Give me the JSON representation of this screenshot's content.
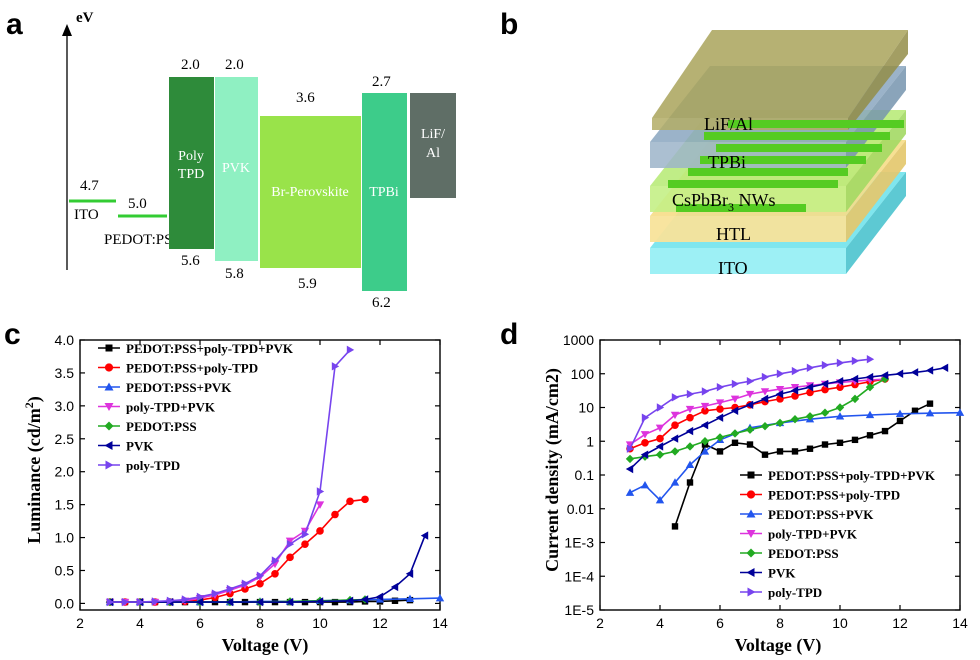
{
  "panels": {
    "a": {
      "letter": "a",
      "axis_label": "eV",
      "levels": [
        {
          "name": "ITO",
          "value": "4.7",
          "color": "#33cc33"
        },
        {
          "name": "PEDOT:PSS",
          "value": "5.0",
          "color": "#33cc33"
        }
      ],
      "bars": [
        {
          "name": "Poly TPD",
          "line1": "Poly",
          "line2": "TPD",
          "top": "2.0",
          "bottom": "5.6",
          "color": "#2e8b3a"
        },
        {
          "name": "PVK",
          "line1": "PVK",
          "line2": "",
          "top": "2.0",
          "bottom": "5.8",
          "color": "#8ff0c2"
        },
        {
          "name": "Br-Perovskite",
          "line1": "Br-Perovskite",
          "line2": "",
          "top": "3.6",
          "bottom": "5.9",
          "color": "#99e34a"
        },
        {
          "name": "TPBi",
          "line1": "TPBi",
          "line2": "",
          "top": "2.7",
          "bottom": "6.2",
          "color": "#3dcc8a"
        },
        {
          "name": "LiF/Al",
          "line1": "LiF/",
          "line2": "Al",
          "top": "",
          "bottom": "",
          "color": "#5f6e66"
        }
      ]
    },
    "b": {
      "letter": "b",
      "layers": [
        {
          "name": "ITO",
          "color": "#7fe6ee"
        },
        {
          "name": "HTL",
          "color": "#f6dd8a"
        },
        {
          "name": "CsPbBr3 NWs",
          "label_main": "CsPbBr",
          "label_sub": "3",
          "label_rest": " NWs",
          "color": "#b9eb7a"
        },
        {
          "name": "TPBi",
          "color": "#8aa6bf"
        },
        {
          "name": "LiF/Al",
          "color": "#a9a35a"
        }
      ],
      "nanowire_color": "#55cc22"
    },
    "c": {
      "letter": "c"
    },
    "d": {
      "letter": "d"
    }
  },
  "series_style": [
    {
      "name": "PEDOT:PSS+poly-TPD+PVK",
      "color": "#000000",
      "marker": "square"
    },
    {
      "name": "PEDOT:PSS+poly-TPD",
      "color": "#ff0000",
      "marker": "circle"
    },
    {
      "name": "PEDOT:PSS+PVK",
      "color": "#2255ee",
      "marker": "triangle-up"
    },
    {
      "name": "poly-TPD+PVK",
      "color": "#dd33dd",
      "marker": "triangle-down"
    },
    {
      "name": "PEDOT:PSS",
      "color": "#22aa22",
      "marker": "diamond"
    },
    {
      "name": "PVK",
      "color": "#000099",
      "marker": "triangle-left"
    },
    {
      "name": "poly-TPD",
      "color": "#7744ee",
      "marker": "triangle-right"
    }
  ],
  "chart_data": [
    {
      "type": "line",
      "panel": "c",
      "xlabel": "Voltage (V)",
      "ylabel_main": "Luminance (cd/m",
      "ylabel_sup": "2",
      "ylabel_end": ")",
      "xlim": [
        2,
        14
      ],
      "ylim": [
        -0.1,
        4.0
      ],
      "xticks": [
        2,
        4,
        6,
        8,
        10,
        12,
        14
      ],
      "yticks": [
        0.0,
        0.5,
        1.0,
        1.5,
        2.0,
        2.5,
        3.0,
        3.5,
        4.0
      ],
      "ytick_labels": [
        "0.0",
        "0.5",
        "1.0",
        "1.5",
        "2.0",
        "2.5",
        "3.0",
        "3.5",
        "4.0"
      ],
      "legend_position": "top-left",
      "series": [
        {
          "name": "PEDOT:PSS+poly-TPD+PVK",
          "x": [
            3,
            3.5,
            4,
            4.5,
            5,
            5.5,
            6,
            6.5,
            7,
            7.5,
            8,
            8.5,
            9,
            9.5,
            10,
            10.5,
            11,
            11.5,
            12,
            12.5,
            13
          ],
          "y": [
            0.02,
            0.02,
            0.02,
            0.02,
            0.02,
            0.02,
            0.02,
            0.02,
            0.02,
            0.02,
            0.02,
            0.02,
            0.02,
            0.02,
            0.02,
            0.02,
            0.02,
            0.03,
            0.03,
            0.04,
            0.05
          ]
        },
        {
          "name": "PEDOT:PSS+poly-TPD",
          "x": [
            3,
            3.5,
            4,
            4.5,
            5,
            5.5,
            6,
            6.5,
            7,
            7.5,
            8,
            8.5,
            9,
            9.5,
            10,
            10.5,
            11,
            11.5
          ],
          "y": [
            0.02,
            0.02,
            0.02,
            0.02,
            0.02,
            0.03,
            0.05,
            0.09,
            0.15,
            0.22,
            0.3,
            0.45,
            0.7,
            0.9,
            1.1,
            1.35,
            1.55,
            1.58
          ]
        },
        {
          "name": "PEDOT:PSS+PVK",
          "x": [
            3,
            4,
            5,
            6,
            7,
            8,
            9,
            10,
            11,
            12,
            13,
            14
          ],
          "y": [
            0.02,
            0.02,
            0.02,
            0.02,
            0.02,
            0.03,
            0.03,
            0.04,
            0.05,
            0.06,
            0.07,
            0.08
          ]
        },
        {
          "name": "poly-TPD+PVK",
          "x": [
            3,
            3.5,
            4,
            4.5,
            5,
            5.5,
            6,
            6.5,
            7,
            7.5,
            8,
            8.5,
            9,
            9.5,
            10
          ],
          "y": [
            0.02,
            0.02,
            0.02,
            0.02,
            0.02,
            0.04,
            0.08,
            0.13,
            0.2,
            0.28,
            0.4,
            0.6,
            0.95,
            1.1,
            1.5
          ]
        },
        {
          "name": "PEDOT:PSS",
          "x": [
            3,
            4,
            5,
            6,
            7,
            8,
            9,
            10,
            11,
            11.5
          ],
          "y": [
            0.02,
            0.02,
            0.02,
            0.02,
            0.02,
            0.02,
            0.03,
            0.04,
            0.05,
            0.06
          ]
        },
        {
          "name": "PVK",
          "x": [
            3,
            4,
            5,
            6,
            7,
            8,
            9,
            10,
            11,
            11.5,
            12,
            12.5,
            13,
            13.5
          ],
          "y": [
            0.02,
            0.02,
            0.02,
            0.02,
            0.02,
            0.02,
            0.02,
            0.03,
            0.04,
            0.06,
            0.1,
            0.25,
            0.45,
            1.03
          ]
        },
        {
          "name": "poly-TPD",
          "x": [
            3,
            3.5,
            4,
            4.5,
            5,
            5.5,
            6,
            6.5,
            7,
            7.5,
            8,
            8.5,
            9,
            9.5,
            10,
            10.5,
            11
          ],
          "y": [
            0.02,
            0.02,
            0.02,
            0.03,
            0.04,
            0.06,
            0.1,
            0.15,
            0.22,
            0.3,
            0.42,
            0.65,
            0.9,
            1.05,
            1.7,
            3.6,
            3.85
          ]
        }
      ]
    },
    {
      "type": "line",
      "panel": "d",
      "scale": "log",
      "xlabel": "Voltage (V)",
      "ylabel": "Current density (mA/cm2)",
      "xlim": [
        2,
        14
      ],
      "ylim": [
        1e-05,
        1000
      ],
      "xticks": [
        2,
        4,
        6,
        8,
        10,
        12,
        14
      ],
      "yticks": [
        1e-05,
        0.0001,
        0.001,
        0.01,
        0.1,
        1,
        10,
        100,
        1000
      ],
      "ytick_labels": [
        "1E-5",
        "1E-4",
        "1E-3",
        "0.01",
        "0.1",
        "1",
        "10",
        "100",
        "1000"
      ],
      "legend_position": "bottom-right",
      "series": [
        {
          "name": "PEDOT:PSS+poly-TPD+PVK",
          "x": [
            4.5,
            5,
            5.5,
            6,
            6.5,
            7,
            7.5,
            8,
            8.5,
            9,
            9.5,
            10,
            10.5,
            11,
            11.5,
            12,
            12.5,
            13
          ],
          "y": [
            0.003,
            0.06,
            0.8,
            0.5,
            0.9,
            0.8,
            0.4,
            0.5,
            0.5,
            0.6,
            0.8,
            0.9,
            1.1,
            1.5,
            2,
            4,
            8,
            13
          ]
        },
        {
          "name": "PEDOT:PSS+poly-TPD",
          "x": [
            3,
            3.5,
            4,
            4.5,
            5,
            5.5,
            6,
            6.5,
            7,
            7.5,
            8,
            8.5,
            9,
            9.5,
            10,
            10.5,
            11,
            11.5
          ],
          "y": [
            0.6,
            0.9,
            1.2,
            3,
            5,
            8,
            9,
            10,
            12,
            15,
            18,
            22,
            28,
            34,
            40,
            48,
            58,
            70
          ]
        },
        {
          "name": "PEDOT:PSS+PVK",
          "x": [
            3,
            3.5,
            4,
            4.5,
            5,
            5.5,
            6,
            7,
            8,
            9,
            10,
            11,
            12,
            13,
            14
          ],
          "y": [
            0.03,
            0.05,
            0.018,
            0.06,
            0.2,
            0.5,
            1.1,
            2.5,
            3.5,
            4.5,
            5.5,
            6,
            6.5,
            6.8,
            7
          ]
        },
        {
          "name": "poly-TPD+PVK",
          "x": [
            3,
            3.5,
            4,
            4.5,
            5,
            5.5,
            6,
            6.5,
            7,
            7.5,
            8,
            8.5,
            9,
            9.5,
            10,
            10.5,
            11,
            11.5
          ],
          "y": [
            0.8,
            1.6,
            2.5,
            6,
            9,
            11,
            14,
            18,
            25,
            30,
            35,
            40,
            45,
            50,
            55,
            60,
            65,
            70
          ]
        },
        {
          "name": "PEDOT:PSS",
          "x": [
            3,
            3.5,
            4,
            4.5,
            5,
            5.5,
            6,
            6.5,
            7,
            7.5,
            8,
            8.5,
            9,
            9.5,
            10,
            10.5,
            11,
            11.5
          ],
          "y": [
            0.3,
            0.35,
            0.4,
            0.5,
            0.7,
            1,
            1.3,
            1.7,
            2.2,
            2.8,
            3.5,
            4.5,
            5.5,
            7,
            10,
            18,
            40,
            70
          ]
        },
        {
          "name": "PVK",
          "x": [
            3,
            3.5,
            4,
            4.5,
            5,
            5.5,
            6,
            6.5,
            7,
            7.5,
            8,
            8.5,
            9,
            9.5,
            10,
            10.5,
            11,
            11.5,
            12,
            12.5,
            13,
            13.5
          ],
          "y": [
            0.15,
            0.4,
            0.7,
            1.2,
            2,
            3,
            5,
            8,
            12,
            18,
            25,
            32,
            40,
            50,
            60,
            70,
            80,
            90,
            100,
            110,
            125,
            150
          ]
        },
        {
          "name": "poly-TPD",
          "x": [
            3,
            3.5,
            4,
            4.5,
            5,
            5.5,
            6,
            6.5,
            7,
            7.5,
            8,
            8.5,
            9,
            9.5,
            10,
            10.5,
            11
          ],
          "y": [
            0.6,
            5,
            10,
            20,
            25,
            30,
            40,
            50,
            60,
            80,
            100,
            120,
            150,
            180,
            210,
            240,
            270
          ]
        }
      ]
    }
  ]
}
